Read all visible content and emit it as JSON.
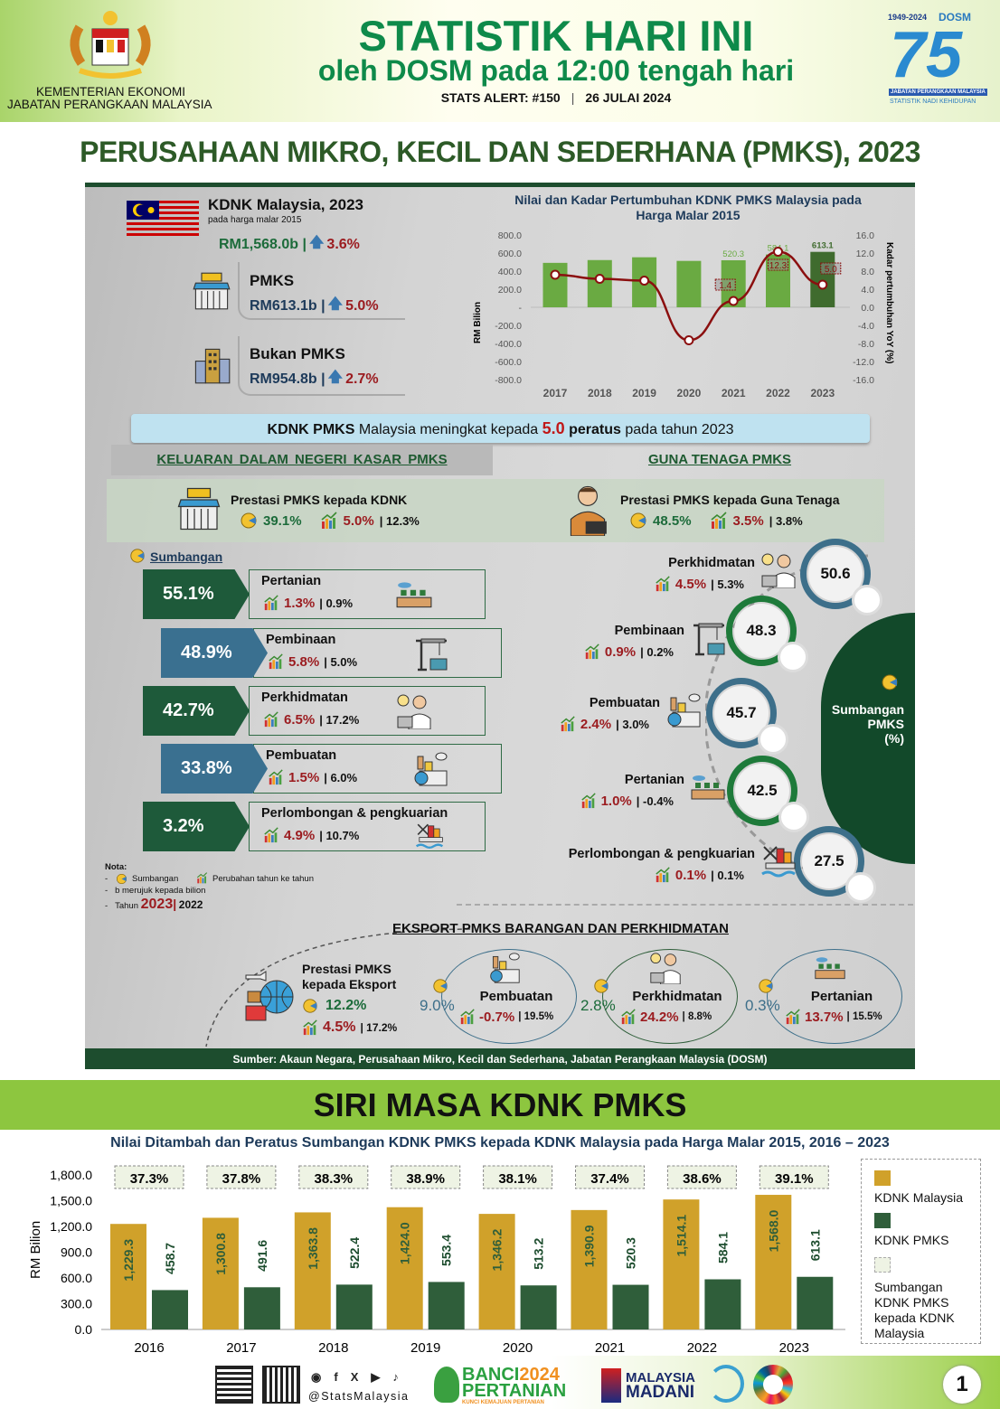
{
  "header": {
    "ministry_line1": "KEMENTERIAN EKONOMI",
    "ministry_line2": "JABATAN PERANGKAAN MALAYSIA",
    "title": "STATISTIK HARI INI",
    "subtitle": "oleh DOSM pada 12:00 tengah hari",
    "alert": "STATS ALERT: #150",
    "separator": "|",
    "date": "26 JULAI 2024",
    "dosm_logo": {
      "years": "1949-2024",
      "name": "DOSM",
      "number": "75",
      "org": "JABATAN PERANGKAAN MALAYSIA",
      "tagline": "STATISTIK NADI KEHIDUPAN"
    }
  },
  "main_title": "PERUSAHAAN MIKRO, KECIL DAN SEDERHANA (PMKS), 2023",
  "kdnk": {
    "title": "KDNK Malaysia, 2023",
    "note": "pada harga malar 2015",
    "value": "RM1,568.0b |",
    "growth": "3.6%"
  },
  "pmks": {
    "badge": "PMKS",
    "label": "PMKS",
    "value": "RM613.1b |",
    "growth": "5.0%"
  },
  "bukan_pmks": {
    "label": "Bukan PMKS",
    "value": "RM954.8b |",
    "growth": "2.7%"
  },
  "chart_data": [
    {
      "type": "bar+line",
      "title": "Nilai dan Kadar Pertumbuhan KDNK PMKS Malaysia pada Harga Malar 2015",
      "ylabel": "RM Bilion",
      "y2label": "Kadar pertumbuhan YoY (%)",
      "categories": [
        "2017",
        "2018",
        "2019",
        "2020",
        "2021",
        "2022",
        "2023"
      ],
      "bars": {
        "values": [
          491.6,
          522.4,
          553.4,
          513.2,
          520.3,
          584.1,
          613.1
        ],
        "labels": [
          "",
          "",
          "",
          "",
          "520.3",
          "584.1",
          "613.1"
        ],
        "color": "#6aaa42",
        "highlight_color": "#3f6b2e"
      },
      "line": {
        "values": [
          7.2,
          6.3,
          5.9,
          -7.3,
          1.4,
          12.3,
          5.0
        ],
        "labels": [
          "",
          "",
          "",
          "",
          "1.4",
          "12.3",
          "5.0"
        ],
        "color": "#8b0f0f"
      },
      "ylim": [
        -800,
        800
      ],
      "yticks": [
        "800.0",
        "600.0",
        "400.0",
        "200.0",
        "-",
        "-200.0",
        "-400.0",
        "-600.0",
        "-800.0"
      ],
      "y2lim": [
        -16,
        16
      ],
      "y2ticks": [
        "16.0",
        "12.0",
        "8.0",
        "4.0",
        "0.0",
        "-4.0",
        "-8.0",
        "-12.0",
        "-16.0"
      ]
    },
    {
      "type": "bar",
      "title": "Nilai Ditambah dan Peratus Sumbangan KDNK PMKS kepada KDNK Malaysia pada Harga Malar 2015, 2016 – 2023",
      "ylabel": "RM Bilion",
      "categories": [
        "2016",
        "2017",
        "2018",
        "2019",
        "2020",
        "2021",
        "2022",
        "2023"
      ],
      "series": [
        {
          "name": "KDNK Malaysia",
          "values": [
            1229.3,
            1300.8,
            1363.8,
            1424.0,
            1346.2,
            1390.9,
            1514.1,
            1568.0
          ],
          "labels": [
            "1,229.3",
            "1,300.8",
            "1,363.8",
            "1,424.0",
            "1,346.2",
            "1,390.9",
            "1,514.1",
            "1,568.0"
          ],
          "color": "#d0a12a"
        },
        {
          "name": "KDNK PMKS",
          "values": [
            458.7,
            491.6,
            522.4,
            553.4,
            513.2,
            520.3,
            584.1,
            613.1
          ],
          "labels": [
            "458.7",
            "491.6",
            "522.4",
            "553.4",
            "513.2",
            "520.3",
            "584.1",
            "613.1"
          ],
          "color": "#2f5e3a"
        },
        {
          "name": "Sumbangan KDNK PMKS kepada KDNK Malaysia",
          "values": [
            37.3,
            37.8,
            38.3,
            38.9,
            38.1,
            37.4,
            38.6,
            39.1
          ],
          "labels": [
            "37.3%",
            "37.8%",
            "38.3%",
            "38.9%",
            "38.1%",
            "37.4%",
            "38.6%",
            "39.1%"
          ],
          "color": "#eef3e4"
        }
      ],
      "ylim": [
        0,
        1800
      ],
      "yticks": [
        "1,800.0",
        "1,500.0",
        "1,200.0",
        "900.0",
        "600.0",
        "300.0",
        "0.0"
      ],
      "legend": "right"
    }
  ],
  "banner": {
    "bold1": "KDNK PMKS",
    "text1": " Malaysia meningkat kepada ",
    "value": "5.0",
    "bold2": " peratus",
    "text2": " pada tahun 2023"
  },
  "sections": {
    "left": "KELUARAN DALAM NEGERI KASAR PMKS",
    "right": "GUNA TENAGA PMKS"
  },
  "prestasi_kdnk": {
    "badge": "PMKS",
    "title": "Prestasi PMKS kepada KDNK",
    "share": "39.1%",
    "g2023": "5.0%",
    "g2022": "| 12.3%"
  },
  "prestasi_guna": {
    "title": "Prestasi PMKS kepada Guna Tenaga",
    "share": "48.5%",
    "g2023": "3.5%",
    "g2022": "| 3.8%"
  },
  "sumbangan_label": "Sumbangan",
  "kdnk_sectors": [
    {
      "share": "55.1%",
      "name": "Pertanian",
      "g2023": "1.3%",
      "g2022": "| 0.9%",
      "icon": "farm-icon"
    },
    {
      "share": "48.9%",
      "name": "Pembinaan",
      "g2023": "5.8%",
      "g2022": "| 5.0%",
      "icon": "crane-icon"
    },
    {
      "share": "42.7%",
      "name": "Perkhidmatan",
      "g2023": "6.5%",
      "g2022": "| 17.2%",
      "icon": "service-icon"
    },
    {
      "share": "33.8%",
      "name": "Pembuatan",
      "g2023": "1.5%",
      "g2022": "| 6.0%",
      "icon": "factory-icon"
    },
    {
      "share": "3.2%",
      "name": "Perlombongan & pengkuarian",
      "g2023": "4.9%",
      "g2022": "| 10.7%",
      "icon": "oil-rig-icon"
    }
  ],
  "guna_sectors": [
    {
      "name": "Perkhidmatan",
      "g2023": "4.5%",
      "g2022": "| 5.3%",
      "share": "50.6",
      "icon": "service-icon"
    },
    {
      "name": "Pembinaan",
      "g2023": "0.9%",
      "g2022": "| 0.2%",
      "share": "48.3",
      "icon": "crane-icon"
    },
    {
      "name": "Pembuatan",
      "g2023": "2.4%",
      "g2022": "| 3.0%",
      "share": "45.7",
      "icon": "factory-icon"
    },
    {
      "name": "Pertanian",
      "g2023": "1.0%",
      "g2022": "| -0.4%",
      "share": "42.5",
      "icon": "farm-icon"
    },
    {
      "name": "Perlombongan & pengkuarian",
      "g2023": "0.1%",
      "g2022": "| 0.1%",
      "share": "27.5",
      "icon": "oil-rig-icon"
    }
  ],
  "sumbangan_pmks": {
    "line1": "Sumbangan",
    "line2": "PMKS",
    "line3": "(%)"
  },
  "nota": {
    "title": "Nota:",
    "item1": "Sumbangan",
    "item2": "Perubahan tahun ke tahun",
    "item3": "b merujuk kepada bilion",
    "item4_label": "Tahun",
    "year_current": "2023",
    "year_sep": "|",
    "year_prev": "2022",
    "dash": "-"
  },
  "eksport": {
    "title": "EKSPORT PMKS BARANGAN DAN PERKHIDMATAN",
    "prestasi_line1": "Prestasi PMKS",
    "prestasi_line2": "kepada Eksport",
    "share": "12.2%",
    "g2023": "4.5%",
    "g2022": "| 17.2%",
    "items": [
      {
        "name": "Pembuatan",
        "share": "9.0%",
        "g2023": "-0.7%",
        "g2022": "| 19.5%",
        "icon": "factory-icon"
      },
      {
        "name": "Perkhidmatan",
        "share": "2.8%",
        "g2023": "24.2%",
        "g2022": "| 8.8%",
        "icon": "service-icon"
      },
      {
        "name": "Pertanian",
        "share": "0.3%",
        "g2023": "13.7%",
        "g2022": "| 15.5%",
        "icon": "farm-icon"
      }
    ]
  },
  "source": "Sumber: Akaun Negara, Perusahaan Mikro, Kecil dan Sederhana, Jabatan Perangkaan Malaysia (DOSM)",
  "siri_masa_title": "SIRI MASA KDNK PMKS",
  "footer": {
    "handle": "@StatsMalaysia",
    "banci": "BANCI",
    "banci_year": "2024",
    "pertanian": "PERTANIAN",
    "banci_tagline": "KUNCI KEMAJUAN PERTANIAN",
    "madani1": "MALAYSIA",
    "madani2": "MADANI",
    "page": "1"
  },
  "colors": {
    "dark_green": "#1d4d2e",
    "title_green": "#0a8a4a",
    "lime": "#8dc63f",
    "red": "#9b1b1f",
    "teal": "#3a7090"
  }
}
